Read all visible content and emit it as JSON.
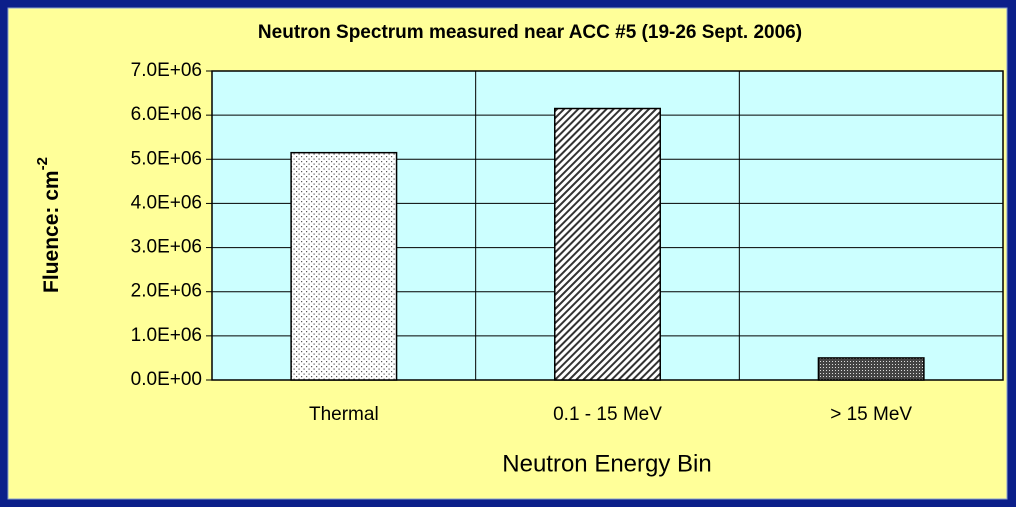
{
  "chart_data": {
    "type": "bar",
    "title": "Neutron Spectrum measured near ACC #5 (19-26 Sept. 2006)",
    "x_label": "Neutron Energy Bin",
    "y_label": {
      "text": "Fluence: cm",
      "superscript": "-2"
    },
    "categories": [
      "Thermal",
      "0.1 - 15 MeV",
      "> 15 MeV"
    ],
    "values": [
      5150000,
      6150000,
      500000
    ],
    "ylim": [
      0,
      7000000
    ],
    "yticks": [
      {
        "value": 0,
        "label": "0.0E+00"
      },
      {
        "value": 1000000,
        "label": "1.0E+06"
      },
      {
        "value": 2000000,
        "label": "2.0E+06"
      },
      {
        "value": 3000000,
        "label": "3.0E+06"
      },
      {
        "value": 4000000,
        "label": "4.0E+06"
      },
      {
        "value": 5000000,
        "label": "5.0E+06"
      },
      {
        "value": 6000000,
        "label": "6.0E+06"
      },
      {
        "value": 7000000,
        "label": "7.0E+06"
      }
    ],
    "grid": true
  }
}
